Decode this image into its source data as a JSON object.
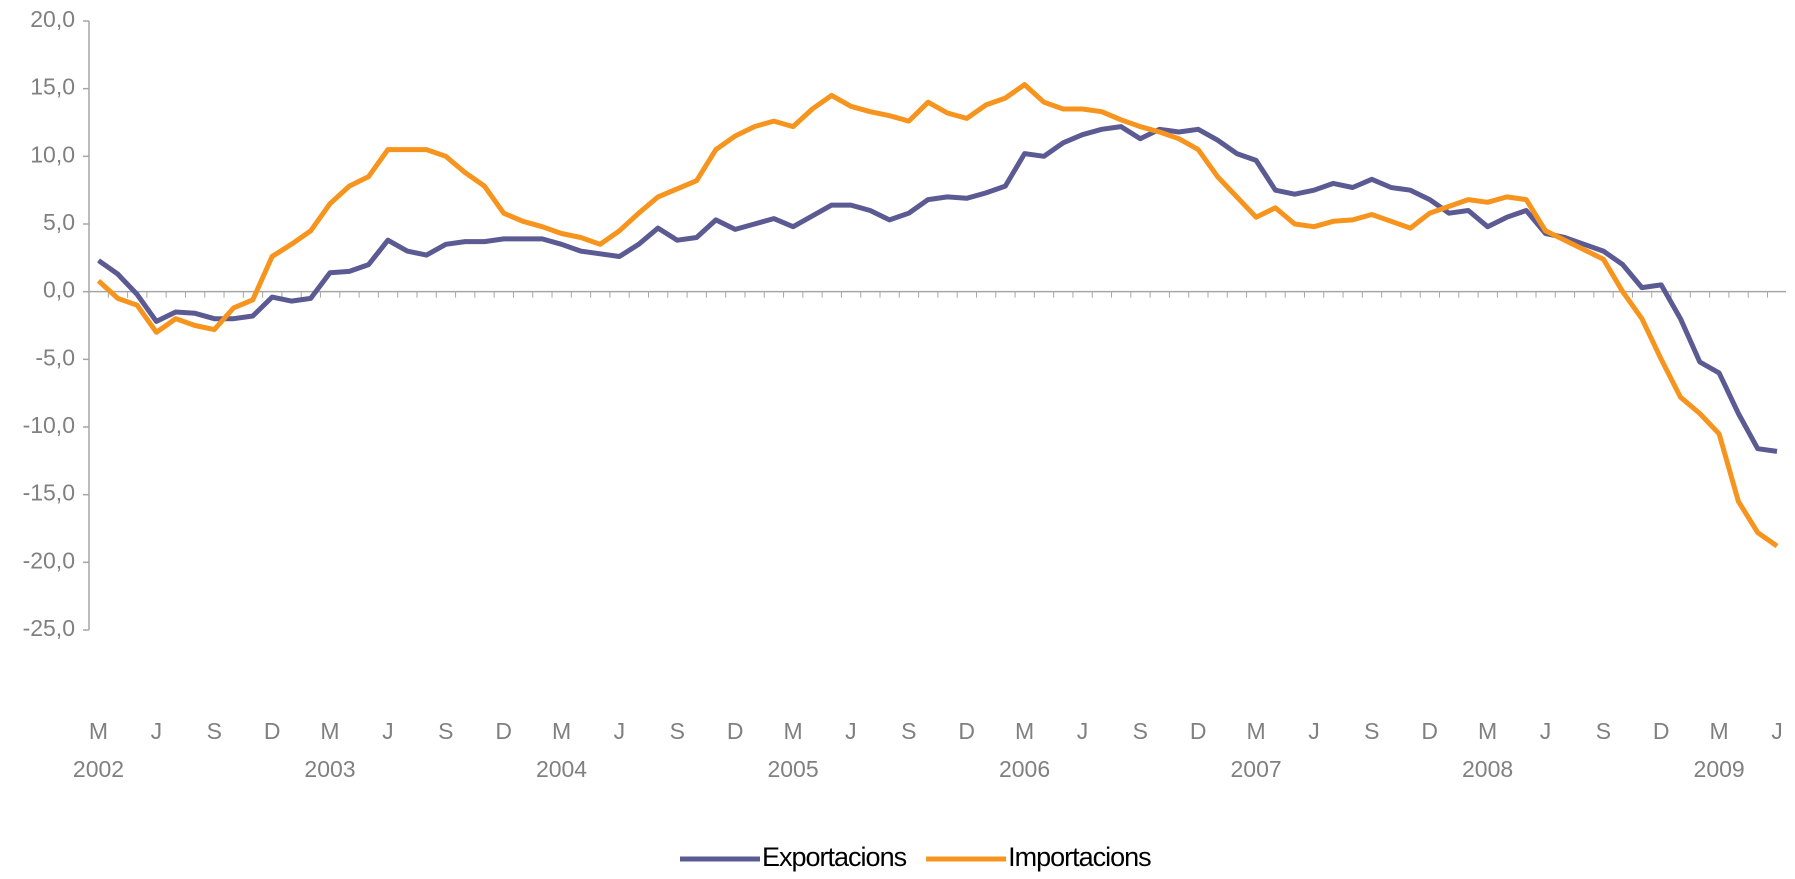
{
  "chart_data": {
    "type": "line",
    "categories": [
      "M",
      null,
      null,
      "J",
      null,
      null,
      "S",
      null,
      null,
      "D",
      null,
      null,
      "M",
      null,
      null,
      "J",
      null,
      null,
      "S",
      null,
      null,
      "D",
      null,
      null,
      "M",
      null,
      null,
      "J",
      null,
      null,
      "S",
      null,
      null,
      "D",
      null,
      null,
      "M",
      null,
      null,
      "J",
      null,
      null,
      "S",
      null,
      null,
      "D",
      null,
      null,
      "M",
      null,
      null,
      "J",
      null,
      null,
      "S",
      null,
      null,
      "D",
      null,
      null,
      "M",
      null,
      null,
      "J",
      null,
      null,
      "S",
      null,
      null,
      "D",
      null,
      null,
      "M",
      null,
      null,
      "J",
      null,
      null,
      "S",
      null,
      null,
      "D",
      null,
      null,
      "M",
      null,
      null,
      "J"
    ],
    "years": [
      "2002",
      "2003",
      "2004",
      "2005",
      "2006",
      "2007",
      "2008",
      "2009"
    ],
    "series": [
      {
        "name": "Exportacions",
        "color": "#5c5a92",
        "values": [
          2.3,
          1.3,
          -0.2,
          -2.2,
          -1.5,
          -1.6,
          -2.0,
          -2.0,
          -1.8,
          -0.4,
          -0.7,
          -0.5,
          1.4,
          1.5,
          2.0,
          3.8,
          3.0,
          2.7,
          3.5,
          3.7,
          3.7,
          3.9,
          3.9,
          3.9,
          3.5,
          3.0,
          2.8,
          2.6,
          3.5,
          4.7,
          3.8,
          4.0,
          5.3,
          4.6,
          5.0,
          5.4,
          4.8,
          5.6,
          6.4,
          6.4,
          6.0,
          5.3,
          5.8,
          6.8,
          7.0,
          6.9,
          7.3,
          7.8,
          10.2,
          10.0,
          11.0,
          11.6,
          12.0,
          12.2,
          11.3,
          12.0,
          11.8,
          12.0,
          11.2,
          10.2,
          9.7,
          7.5,
          7.2,
          7.5,
          8.0,
          7.7,
          8.3,
          7.7,
          7.5,
          6.8,
          5.8,
          6.0,
          4.8,
          5.5,
          6.0,
          4.3,
          4.0,
          3.5,
          3.0,
          2.0,
          0.3,
          0.5,
          -2.0,
          -5.2,
          -6.0,
          -9.0,
          -11.6,
          -11.8
        ]
      },
      {
        "name": "Importacions",
        "color": "#f7941d",
        "values": [
          0.8,
          -0.5,
          -1.0,
          -3.0,
          -2.0,
          -2.5,
          -2.8,
          -1.2,
          -0.6,
          2.6,
          3.5,
          4.5,
          6.5,
          7.8,
          8.5,
          10.5,
          10.5,
          10.5,
          10.0,
          8.8,
          7.8,
          5.8,
          5.2,
          4.8,
          4.3,
          4.0,
          3.5,
          4.5,
          5.8,
          7.0,
          7.6,
          8.2,
          10.5,
          11.5,
          12.2,
          12.6,
          12.2,
          13.5,
          14.5,
          13.7,
          13.3,
          13.0,
          12.6,
          14.0,
          13.2,
          12.8,
          13.8,
          14.3,
          15.3,
          14.0,
          13.5,
          13.5,
          13.3,
          12.7,
          12.2,
          11.8,
          11.3,
          10.5,
          8.5,
          7.0,
          5.5,
          6.2,
          5.0,
          4.8,
          5.2,
          5.3,
          5.7,
          5.2,
          4.7,
          5.8,
          6.3,
          6.8,
          6.6,
          7.0,
          6.8,
          4.5,
          3.8,
          3.1,
          2.4,
          0.0,
          -2.0,
          -5.0,
          -7.8,
          -9.0,
          -10.5,
          -15.5,
          -17.8,
          -18.8
        ]
      }
    ],
    "ylim": [
      -25,
      20
    ],
    "yticks": [
      {
        "value": -25,
        "label": "-25,0"
      },
      {
        "value": -20,
        "label": "-20,0"
      },
      {
        "value": -15,
        "label": "-15,0"
      },
      {
        "value": -10,
        "label": "-10,0"
      },
      {
        "value": -5,
        "label": "-5,0"
      },
      {
        "value": 0,
        "label": "0,0"
      },
      {
        "value": 5,
        "label": "5,0"
      },
      {
        "value": 10,
        "label": "10,0"
      },
      {
        "value": 15,
        "label": "15,0"
      },
      {
        "value": 20,
        "label": "20,0"
      }
    ]
  }
}
